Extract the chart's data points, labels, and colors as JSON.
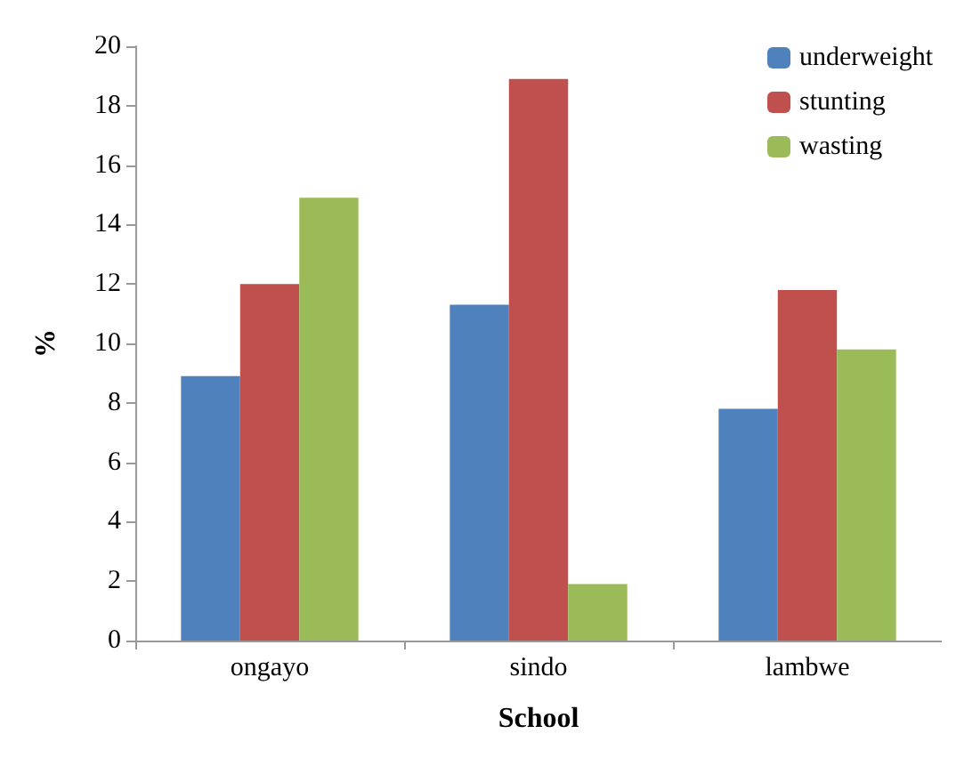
{
  "chart_data": {
    "type": "bar",
    "xlabel": "School",
    "ylabel": "%",
    "categories": [
      "ongayo",
      "sindo",
      "lambwe"
    ],
    "series": [
      {
        "name": "underweight",
        "color": "#4f81bd",
        "values": [
          8.9,
          11.3,
          7.8
        ]
      },
      {
        "name": "stunting",
        "color": "#c0504d",
        "values": [
          12.0,
          18.9,
          11.8
        ]
      },
      {
        "name": "wasting",
        "color": "#9bbb59",
        "values": [
          14.9,
          1.9,
          9.8
        ]
      }
    ],
    "ylim": [
      0,
      20
    ],
    "yticks": [
      0,
      2,
      4,
      6,
      8,
      10,
      12,
      14,
      16,
      18,
      20
    ],
    "grid": false,
    "legend": "top right"
  }
}
